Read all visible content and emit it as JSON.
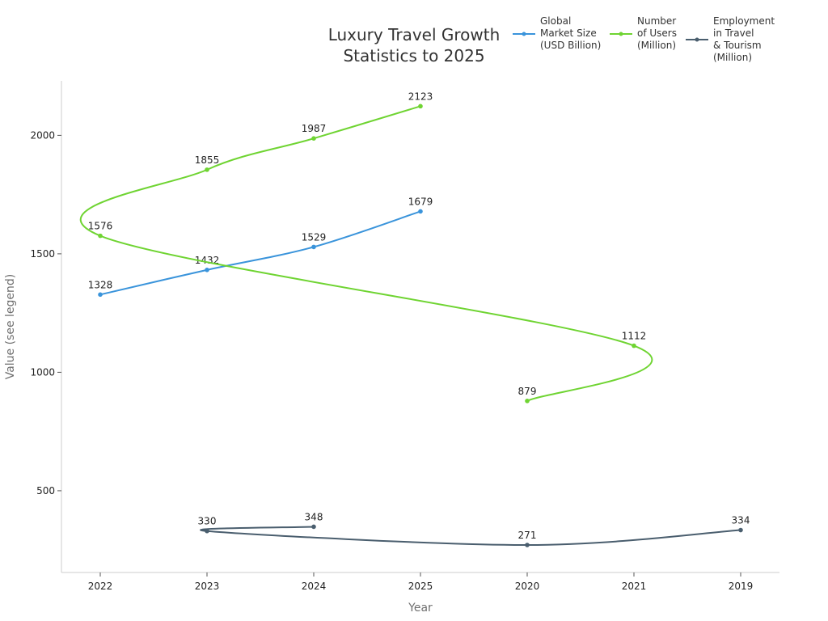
{
  "chart_data": {
    "type": "line",
    "title_lines": [
      "Luxury Travel Growth",
      "Statistics to 2025"
    ],
    "xlabel": "Year",
    "ylabel": "Value (see legend)",
    "categories": [
      "2022",
      "2023",
      "2024",
      "2025",
      "2020",
      "2021",
      "2019"
    ],
    "ylim": [
      155,
      2230
    ],
    "yticks": [
      500,
      1000,
      1500,
      2000
    ],
    "grid": false,
    "legend_position": "top-right",
    "series": [
      {
        "name": "Global Market Size (USD Billion)",
        "name_lines": [
          "Global",
          "Market Size",
          "(USD Billion)"
        ],
        "color": "#3a94db",
        "points": [
          {
            "x": "2022",
            "y": 1328
          },
          {
            "x": "2023",
            "y": 1432
          },
          {
            "x": "2024",
            "y": 1529
          },
          {
            "x": "2025",
            "y": 1679
          }
        ]
      },
      {
        "name": "Number of Users (Million)",
        "name_lines": [
          "Number",
          "of Users",
          "(Million)"
        ],
        "color": "#6fd432",
        "points": [
          {
            "x": "2020",
            "y": 879
          },
          {
            "x": "2021",
            "y": 1112
          },
          {
            "x": "2022",
            "y": 1576
          },
          {
            "x": "2023",
            "y": 1855
          },
          {
            "x": "2024",
            "y": 1987
          },
          {
            "x": "2025",
            "y": 2123
          }
        ]
      },
      {
        "name": "Employment in Travel & Tourism (Million)",
        "name_lines": [
          "Employment",
          "in Travel",
          "& Tourism",
          "(Million)"
        ],
        "color": "#4a5e6e",
        "points": [
          {
            "x": "2019",
            "y": 334
          },
          {
            "x": "2020",
            "y": 271
          },
          {
            "x": "2023",
            "y": 330
          },
          {
            "x": "2024",
            "y": 348
          }
        ]
      }
    ]
  }
}
